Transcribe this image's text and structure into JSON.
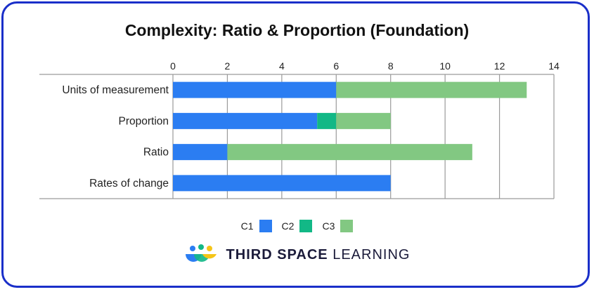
{
  "chart_data": {
    "type": "bar",
    "orientation": "horizontal",
    "stacked": true,
    "title": "Complexity: Ratio & Proportion (Foundation)",
    "categories": [
      "Units of measurement",
      "Proportion",
      "Ratio",
      "Rates of change"
    ],
    "series": [
      {
        "name": "C1",
        "color": "#2b7df2",
        "values": [
          6,
          5.3,
          2,
          8
        ]
      },
      {
        "name": "C2",
        "color": "#12b886",
        "values": [
          0,
          0.7,
          0,
          0
        ]
      },
      {
        "name": "C3",
        "color": "#82c882",
        "values": [
          7,
          2,
          9,
          0
        ]
      }
    ],
    "xlim": [
      0,
      14
    ],
    "xticks": [
      "0",
      "2",
      "4",
      "6",
      "8",
      "10",
      "12",
      "14"
    ],
    "xaxis_position": "top",
    "grid": true,
    "legend_position": "bottom"
  },
  "branding": {
    "name_bold": "THIRD SPACE",
    "name_regular": "LEARNING",
    "icon": "third-space-learning-logo-icon"
  }
}
